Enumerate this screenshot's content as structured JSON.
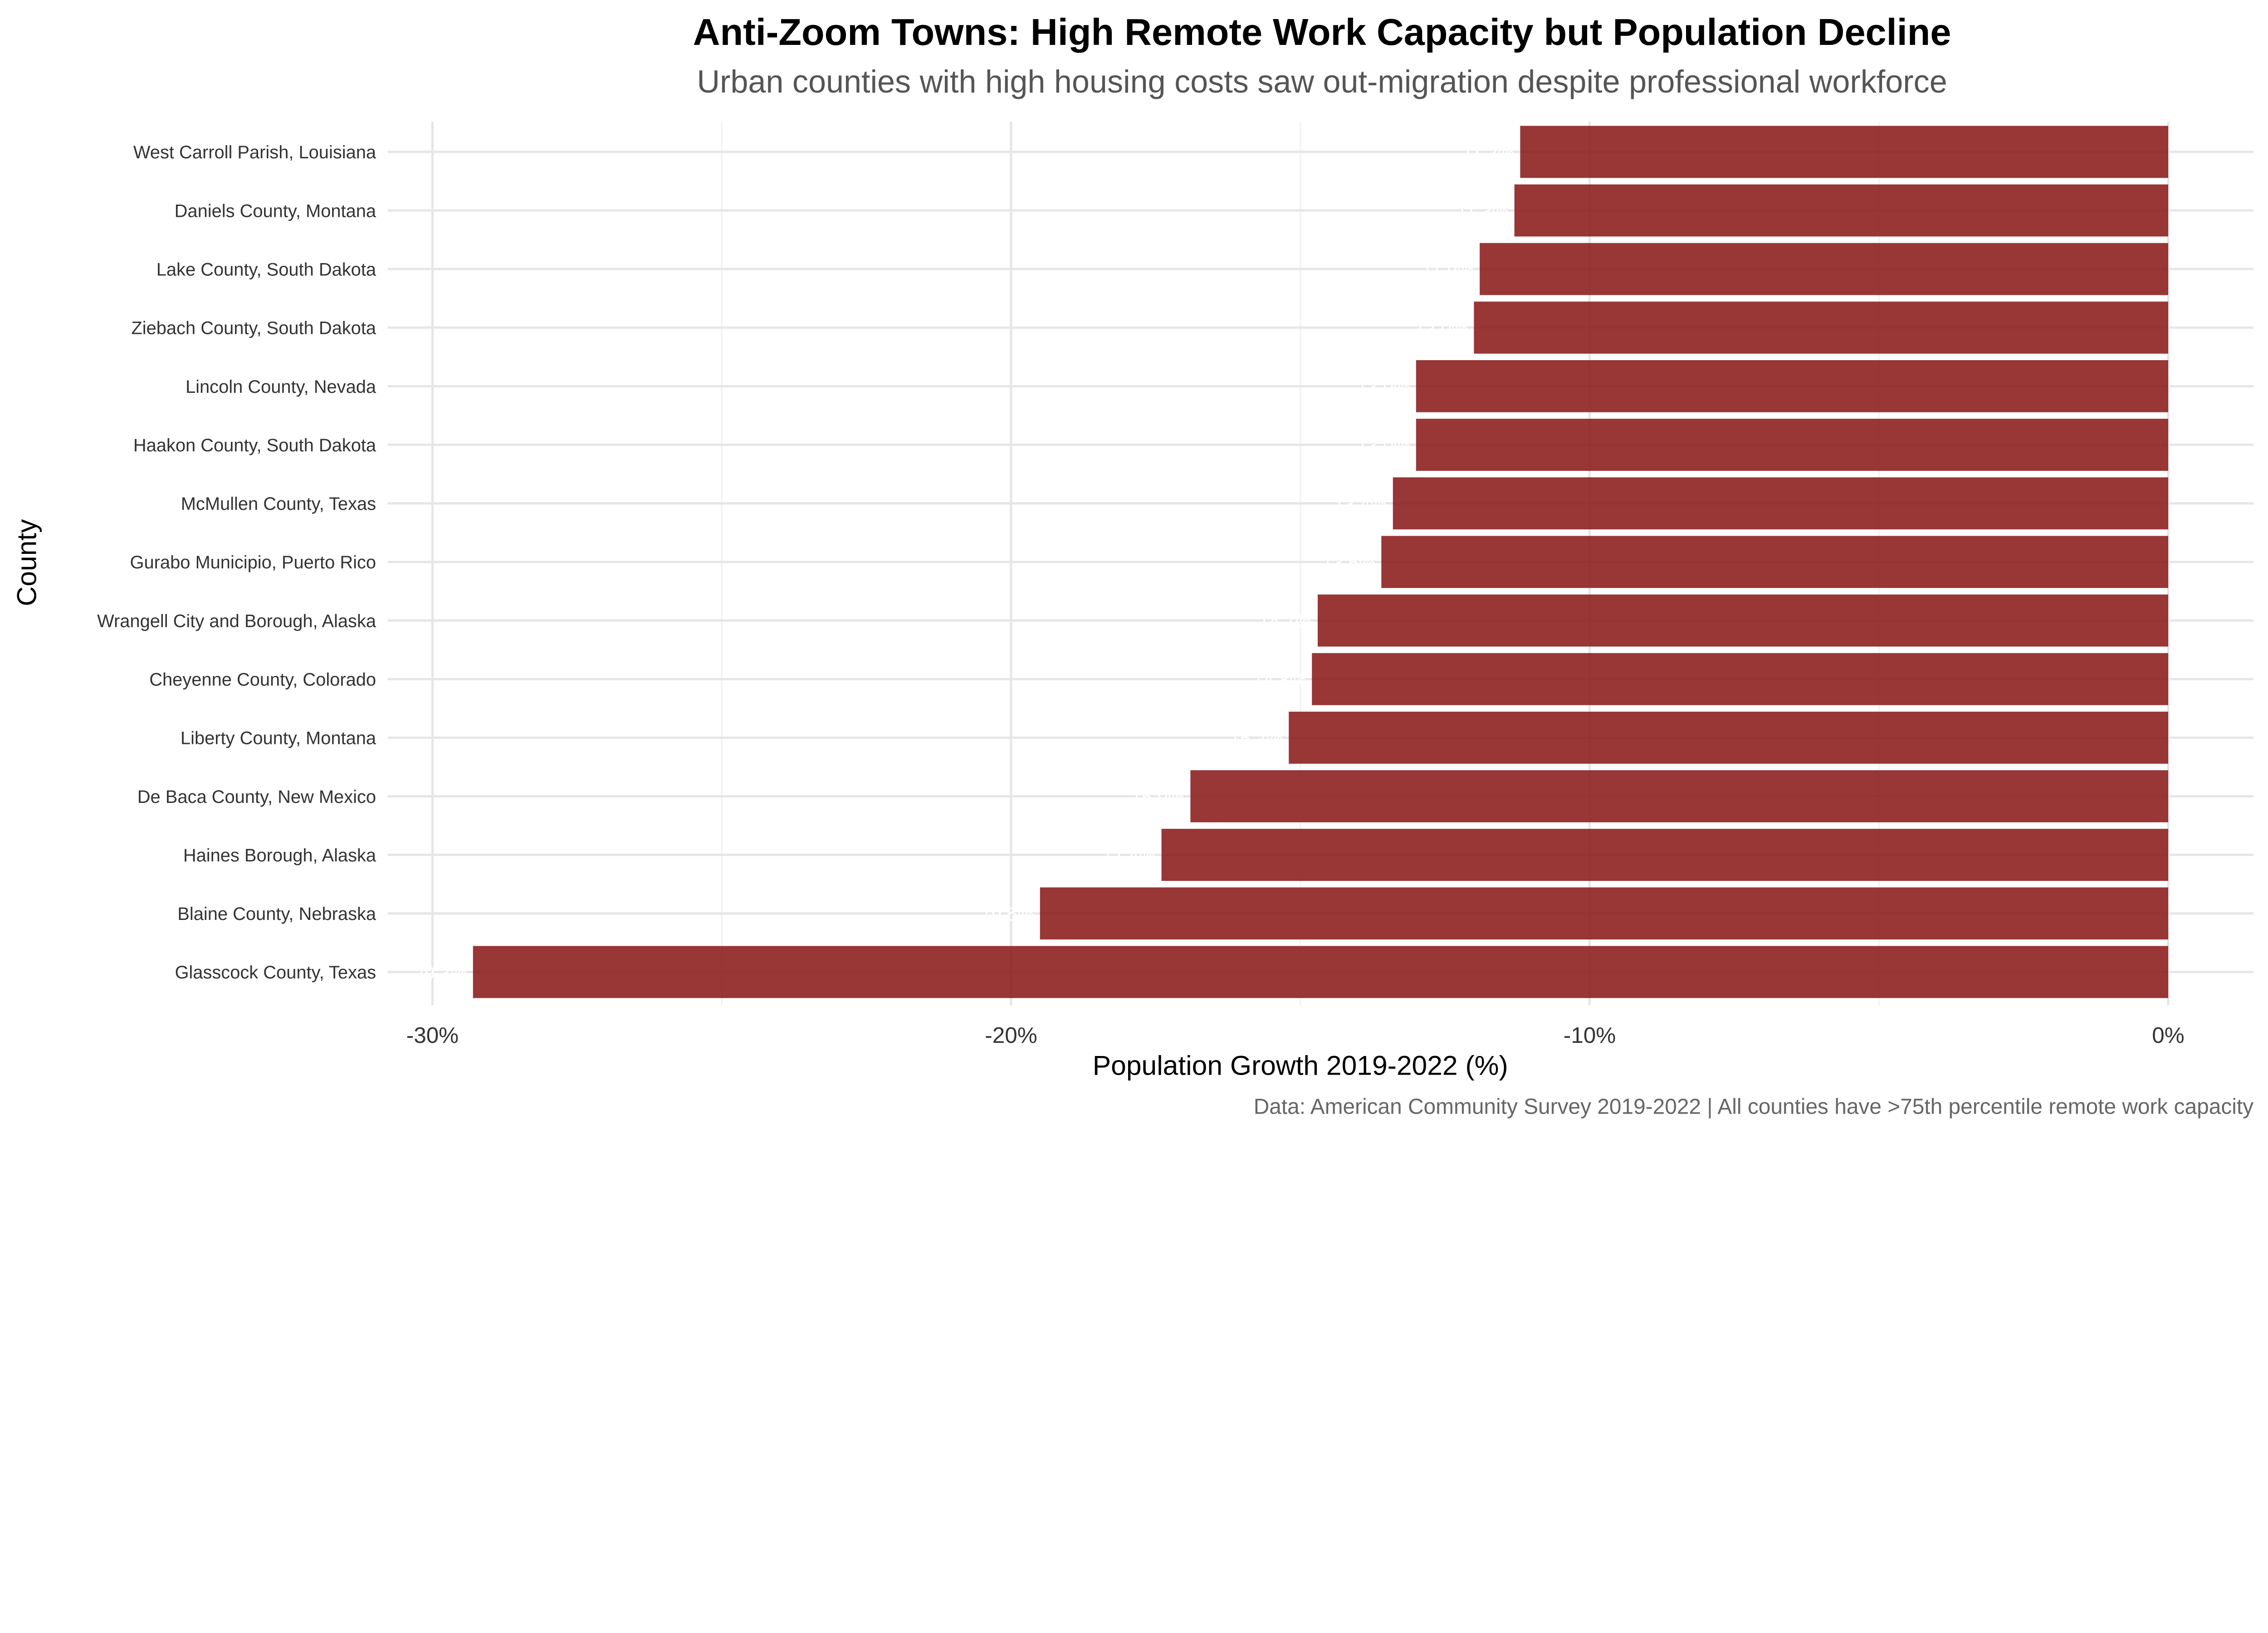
{
  "chart_data": {
    "type": "bar",
    "orientation": "horizontal",
    "title": "Anti-Zoom Towns: High Remote Work Capacity but Population Decline",
    "subtitle": "Urban counties with high housing costs saw out-migration despite professional workforce",
    "xlabel": "Population Growth 2019-2022 (%)",
    "ylabel": "County",
    "caption": "Data: American Community Survey 2019-2022 | All counties have >75th percentile remote work capacity",
    "xlim": [
      -31,
      1.5
    ],
    "x_ticks": [
      -30,
      -20,
      -10,
      0
    ],
    "x_tick_labels": [
      "-30%",
      "-20%",
      "-10%",
      "0%"
    ],
    "grid": true,
    "bar_color": "#8b1a1a",
    "label_color": "#ffffff",
    "categories": [
      "West Carroll Parish, Louisiana",
      "Daniels County, Montana",
      "Lake County, South Dakota",
      "Ziebach County, South Dakota",
      "Lincoln County, Nevada",
      "Haakon County, South Dakota",
      "McMullen County, Texas",
      "Gurabo Municipio, Puerto Rico",
      "Wrangell City and Borough, Alaska",
      "Cheyenne County, Colorado",
      "Liberty County, Montana",
      "De Baca County, New Mexico",
      "Haines Borough, Alaska",
      "Blaine County, Nebraska",
      "Glasscock County, Texas"
    ],
    "values": [
      -11.2,
      -11.3,
      -11.9,
      -12.0,
      -13.0,
      -13.0,
      -13.4,
      -13.6,
      -14.7,
      -14.8,
      -15.2,
      -16.9,
      -17.4,
      -19.5,
      -29.3
    ],
    "data_labels": [
      "-11.2%",
      "-11.3%",
      "-11.9%",
      "-12.0%",
      "-13.0%",
      "-13.0%",
      "-13.4%",
      "-13.6%",
      "-14.7%",
      "-14.8%",
      "-15.2%",
      "-16.9%",
      "-17.4%",
      "-19.5%",
      "-29.3%"
    ]
  }
}
